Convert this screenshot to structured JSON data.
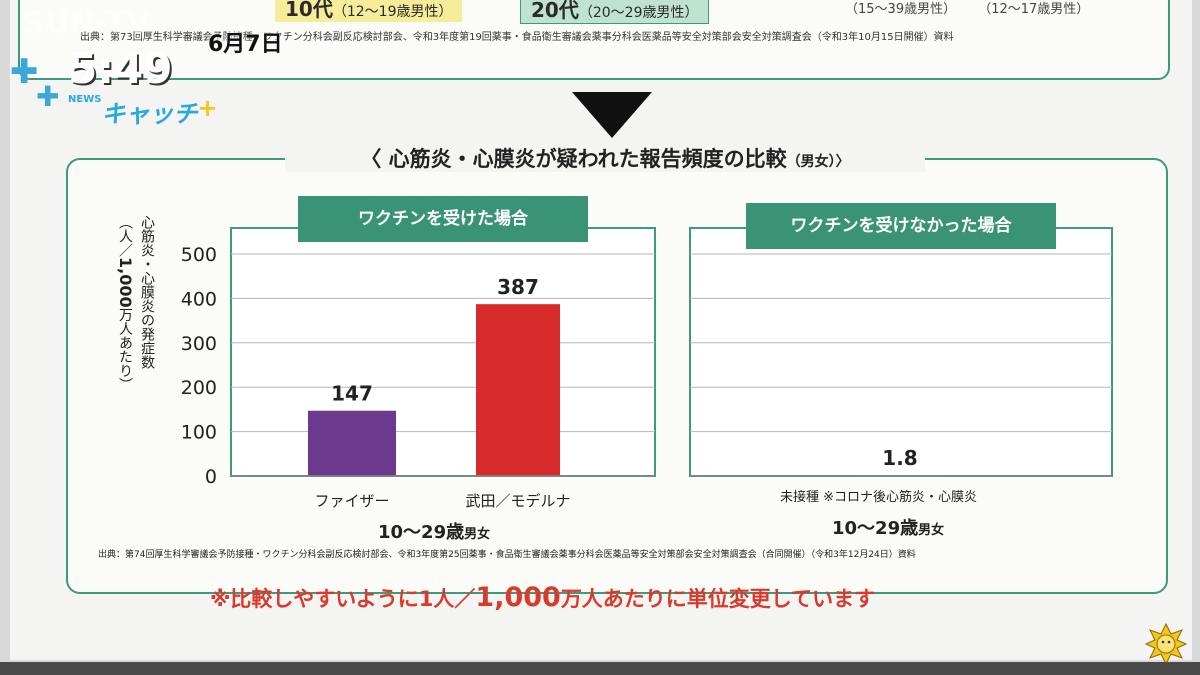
{
  "overlay": {
    "channel": "SUN-TV",
    "date": "6月7日",
    "time": "5:49",
    "show_name": "キャッチ",
    "show_tag": "NEWS"
  },
  "top_section": {
    "tag1_main": "10代",
    "tag1_sub": "（12～19歳男性）",
    "tag2_main": "20代",
    "tag2_sub": "（20～29歳男性）",
    "right_ages": "（15～39歳男性） （12～17歳男性）",
    "source": "出典：第73回厚生科学審議会予防接種・ワクチン分科会副反応検討部会、令和3年度第19回薬事・食品衛生審議会薬事分科会医薬品等安全対策部会安全対策調査会（令和3年10月15日開催）資料"
  },
  "panel": {
    "title": "〈 心筋炎・心膜炎が疑われた報告頻度の比較",
    "title_sub": "（男女）〉",
    "left_header": "ワクチンを受けた場合",
    "right_header": "ワクチンを受けなかった場合",
    "ylabel_line1": "心筋炎・心膜炎の発症数",
    "ylabel_line2_a": "（人／",
    "ylabel_line2_b": "1,000",
    "ylabel_line2_c": "万人あたり）",
    "age_group_main": "10～29歳",
    "age_group_sub": "男女",
    "right_age_group_main": "10～29歳",
    "right_age_group_sub": "男女",
    "right_category": "未接種 ※コロナ後心筋炎・心膜炎",
    "source": "出典：第74回厚生科学審議会予防接種・ワクチン分科会副反応検討部会、令和3年度第25回薬事・食品衛生審議会薬事分科会医薬品等安全対策部会安全対策調査会（合同開催）（令和3年12月24日）資料",
    "note_a": "※比較しやすいように1人／",
    "note_b": "1,000",
    "note_c": "万人あたりに単位変更しています"
  },
  "chart_data": [
    {
      "type": "bar",
      "title": "ワクチンを受けた場合",
      "categories": [
        "ファイザー",
        "武田／モデルナ"
      ],
      "values": [
        147,
        387
      ],
      "colors": [
        "#6b3a8e",
        "#d72b2b"
      ],
      "ylabel": "心筋炎・心膜炎の発症数（人／1,000万人あたり）",
      "yticks": [
        0,
        100,
        200,
        300,
        400,
        500
      ],
      "ylim": [
        0,
        500
      ],
      "grid": true
    },
    {
      "type": "bar",
      "title": "ワクチンを受けなかった場合",
      "categories": [
        "未接種 ※コロナ後心筋炎・心膜炎"
      ],
      "values": [
        1.8
      ],
      "colors": [
        "#555555"
      ],
      "ylim": [
        0,
        500
      ],
      "grid": true
    }
  ]
}
